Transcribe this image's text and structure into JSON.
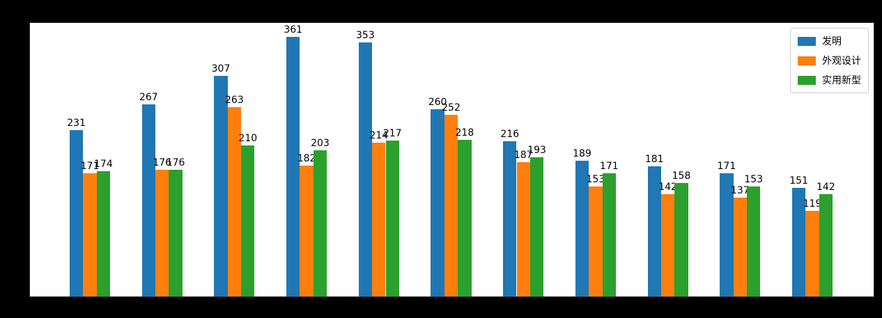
{
  "colors": {
    "figure_background": "#000000",
    "axes_background": "#ffffff",
    "bar_label_color": "#000000",
    "legend_border": "#cccccc"
  },
  "chart_data": {
    "type": "bar",
    "title": "",
    "xlabel": "",
    "ylabel": "",
    "grid": false,
    "legend_position": "upper right",
    "x_tick_labels_visible": false,
    "num_groups": 11,
    "ylim": [
      0,
      380
    ],
    "bar_value_labels": true,
    "series": [
      {
        "name": "发明",
        "color": "#1f77b4",
        "values": [
          231,
          267,
          307,
          361,
          353,
          260,
          216,
          189,
          181,
          171,
          151
        ]
      },
      {
        "name": "外观设计",
        "color": "#ff7f0e",
        "values": [
          171,
          176,
          263,
          182,
          214,
          252,
          187,
          153,
          142,
          137,
          119
        ]
      },
      {
        "name": "实用新型",
        "color": "#2ca02c",
        "values": [
          174,
          176,
          210,
          203,
          217,
          218,
          193,
          171,
          158,
          153,
          142
        ]
      }
    ]
  },
  "legend": {
    "items": [
      {
        "label": "发明"
      },
      {
        "label": "外观设计"
      },
      {
        "label": "实用新型"
      }
    ]
  }
}
